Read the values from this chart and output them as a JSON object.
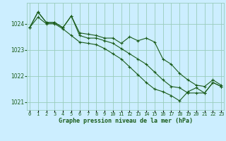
{
  "title": "Graphe pression niveau de la mer (hPa)",
  "background_color": "#cceeff",
  "grid_color": "#99ccbb",
  "line_color": "#1a5c1a",
  "x_labels": [
    "0",
    "1",
    "2",
    "3",
    "4",
    "5",
    "6",
    "7",
    "8",
    "9",
    "10",
    "11",
    "12",
    "13",
    "14",
    "15",
    "16",
    "17",
    "18",
    "19",
    "20",
    "21",
    "22",
    "23"
  ],
  "ylim": [
    1020.7,
    1024.8
  ],
  "yticks": [
    1021,
    1022,
    1023,
    1024
  ],
  "line1": [
    1023.85,
    1024.45,
    1024.05,
    1024.05,
    1023.85,
    1024.3,
    1023.65,
    1023.6,
    1023.55,
    1023.45,
    1023.45,
    1023.25,
    1023.5,
    1023.35,
    1023.45,
    1023.3,
    1022.65,
    1022.45,
    1022.1,
    1021.85,
    1021.65,
    1021.6,
    1021.85,
    1021.65
  ],
  "line2": [
    1023.85,
    1024.45,
    1024.05,
    1024.05,
    1023.85,
    1024.3,
    1023.55,
    1023.45,
    1023.45,
    1023.35,
    1023.25,
    1023.05,
    1022.85,
    1022.65,
    1022.45,
    1022.15,
    1021.85,
    1021.6,
    1021.55,
    1021.35,
    1021.35,
    1021.35,
    1021.75,
    1021.6
  ],
  "line3": [
    1023.85,
    1024.25,
    1024.0,
    1024.0,
    1023.8,
    1023.55,
    1023.3,
    1023.25,
    1023.2,
    1023.05,
    1022.85,
    1022.65,
    1022.35,
    1022.05,
    1021.75,
    1021.5,
    1021.4,
    1021.25,
    1021.05,
    1021.4,
    1021.55,
    1021.35,
    1021.75,
    1021.6
  ]
}
